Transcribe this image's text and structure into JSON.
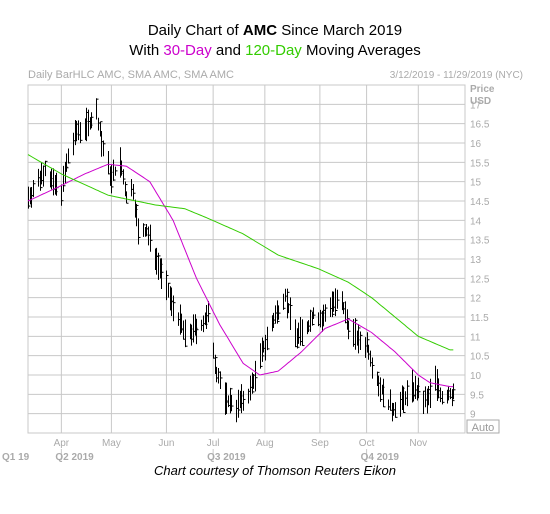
{
  "title": {
    "line1_prefix": "Daily Chart of ",
    "line1_ticker": "AMC",
    "line1_suffix": " Since March 2019",
    "line2_prefix": "With ",
    "line2_ma1": "30-Day",
    "line2_mid": " and ",
    "line2_ma2": "120-Day",
    "line2_suffix": " Moving Averages"
  },
  "header": {
    "left": "Daily BarHLC AMC, SMA AMC, SMA AMC",
    "right": "3/12/2019 - 11/29/2019 (NYC)"
  },
  "credit": "Chart courtesy of Thomson Reuters Eikon",
  "colors": {
    "ma30": "#cc00cc",
    "ma120": "#33cc00",
    "bars": "#000000",
    "grid": "#c8c8c8",
    "axis_text": "#aaaaaa"
  },
  "chart_data": {
    "type": "bar-hlc",
    "ylabel": "Price\nUSD",
    "ylim": [
      8.5,
      17.5
    ],
    "y_ticks": [
      9,
      9.5,
      10,
      10.5,
      11,
      11.5,
      12,
      12.5,
      13,
      13.5,
      14,
      14.5,
      15,
      15.5,
      16,
      16.5,
      17
    ],
    "month_labels": [
      "Apr",
      "May",
      "Jun",
      "Jul",
      "Aug",
      "Sep",
      "Oct",
      "Nov"
    ],
    "quarter_labels": [
      "Q1 19",
      "Q2 2019",
      "Q3 2019",
      "Q4 2019"
    ],
    "auto_label": "Auto",
    "x_range": [
      "2019-03-12",
      "2019-11-29"
    ],
    "grid": true,
    "price_anchors": [
      [
        "2019-03-12",
        14.6
      ],
      [
        "2019-03-18",
        15.0
      ],
      [
        "2019-03-22",
        15.4
      ],
      [
        "2019-03-27",
        14.9
      ],
      [
        "2019-04-01",
        14.8
      ],
      [
        "2019-04-05",
        15.6
      ],
      [
        "2019-04-10",
        16.3
      ],
      [
        "2019-04-17",
        16.5
      ],
      [
        "2019-04-22",
        16.8
      ],
      [
        "2019-04-26",
        15.8
      ],
      [
        "2019-05-01",
        15.1
      ],
      [
        "2019-05-06",
        15.5
      ],
      [
        "2019-05-10",
        14.6
      ],
      [
        "2019-05-14",
        14.8
      ],
      [
        "2019-05-17",
        13.7
      ],
      [
        "2019-05-22",
        13.7
      ],
      [
        "2019-05-29",
        12.9
      ],
      [
        "2019-06-05",
        12.0
      ],
      [
        "2019-06-10",
        11.5
      ],
      [
        "2019-06-14",
        11.0
      ],
      [
        "2019-06-24",
        11.3
      ],
      [
        "2019-06-28",
        11.5
      ],
      [
        "2019-07-03",
        10.1
      ],
      [
        "2019-07-08",
        9.4
      ],
      [
        "2019-07-15",
        9.2
      ],
      [
        "2019-07-22",
        9.5
      ],
      [
        "2019-07-26",
        10.0
      ],
      [
        "2019-07-31",
        10.7
      ],
      [
        "2019-08-06",
        11.4
      ],
      [
        "2019-08-13",
        12.1
      ],
      [
        "2019-08-15",
        11.7
      ],
      [
        "2019-08-20",
        11.0
      ],
      [
        "2019-08-26",
        11.2
      ],
      [
        "2019-08-30",
        11.6
      ],
      [
        "2019-09-04",
        11.4
      ],
      [
        "2019-09-10",
        11.9
      ],
      [
        "2019-09-16",
        11.8
      ],
      [
        "2019-09-20",
        11.3
      ],
      [
        "2019-09-26",
        10.9
      ],
      [
        "2019-10-01",
        10.8
      ],
      [
        "2019-10-07",
        9.9
      ],
      [
        "2019-10-11",
        9.5
      ],
      [
        "2019-10-16",
        9.1
      ],
      [
        "2019-10-22",
        9.3
      ],
      [
        "2019-10-28",
        9.7
      ],
      [
        "2019-11-01",
        9.5
      ],
      [
        "2019-11-06",
        9.3
      ],
      [
        "2019-11-11",
        9.9
      ],
      [
        "2019-11-15",
        9.4
      ],
      [
        "2019-11-20",
        9.5
      ]
    ],
    "sma30_anchors": [
      [
        "2019-03-12",
        14.5
      ],
      [
        "2019-04-01",
        14.9
      ],
      [
        "2019-04-15",
        15.2
      ],
      [
        "2019-04-29",
        15.45
      ],
      [
        "2019-05-10",
        15.4
      ],
      [
        "2019-05-24",
        15.0
      ],
      [
        "2019-06-07",
        14.0
      ],
      [
        "2019-06-21",
        12.5
      ],
      [
        "2019-07-05",
        11.3
      ],
      [
        "2019-07-19",
        10.3
      ],
      [
        "2019-07-29",
        10.0
      ],
      [
        "2019-08-09",
        10.1
      ],
      [
        "2019-08-23",
        10.6
      ],
      [
        "2019-09-06",
        11.2
      ],
      [
        "2019-09-20",
        11.45
      ],
      [
        "2019-10-04",
        11.1
      ],
      [
        "2019-10-18",
        10.6
      ],
      [
        "2019-11-01",
        10.0
      ],
      [
        "2019-11-08",
        9.8
      ],
      [
        "2019-11-20",
        9.7
      ]
    ],
    "sma120_anchors": [
      [
        "2019-03-12",
        15.7
      ],
      [
        "2019-04-01",
        15.2
      ],
      [
        "2019-04-29",
        14.65
      ],
      [
        "2019-05-27",
        14.4
      ],
      [
        "2019-06-14",
        14.3
      ],
      [
        "2019-06-28",
        14.05
      ],
      [
        "2019-07-19",
        13.65
      ],
      [
        "2019-08-09",
        13.1
      ],
      [
        "2019-09-02",
        12.75
      ],
      [
        "2019-09-20",
        12.4
      ],
      [
        "2019-10-04",
        12.0
      ],
      [
        "2019-10-18",
        11.5
      ],
      [
        "2019-11-01",
        11.0
      ],
      [
        "2019-11-20",
        10.65
      ]
    ]
  }
}
